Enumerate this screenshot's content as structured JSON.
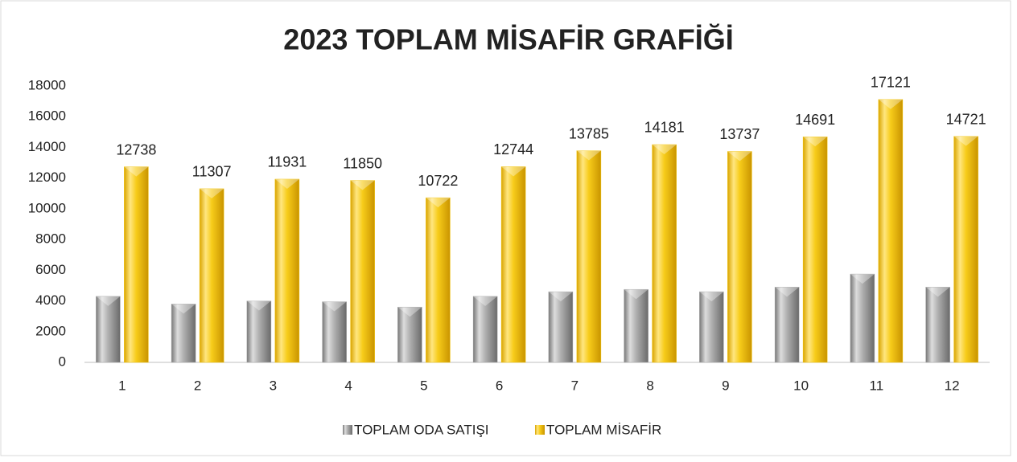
{
  "chart_data": {
    "type": "bar",
    "title": "2023 TOPLAM MİSAFİR GRAFİĞİ",
    "categories": [
      "1",
      "2",
      "3",
      "4",
      "5",
      "6",
      "7",
      "8",
      "9",
      "10",
      "11",
      "12"
    ],
    "series": [
      {
        "name": "TOPLAM ODA SATIŞI",
        "color": "#a6a6a6",
        "data_labels": false,
        "values": [
          4300,
          3800,
          4000,
          3950,
          3600,
          4300,
          4600,
          4750,
          4600,
          4900,
          5750,
          4900
        ]
      },
      {
        "name": "TOPLAM MİSAFİR",
        "color": "#f2c200",
        "data_labels": true,
        "values": [
          12738,
          11307,
          11931,
          11850,
          10722,
          12744,
          13785,
          14181,
          13737,
          14691,
          17121,
          14721
        ]
      }
    ],
    "ylim": [
      0,
      18000
    ],
    "yticks": [
      0,
      2000,
      4000,
      6000,
      8000,
      10000,
      12000,
      14000,
      16000,
      18000
    ],
    "grid": false,
    "legend": "bottom"
  }
}
